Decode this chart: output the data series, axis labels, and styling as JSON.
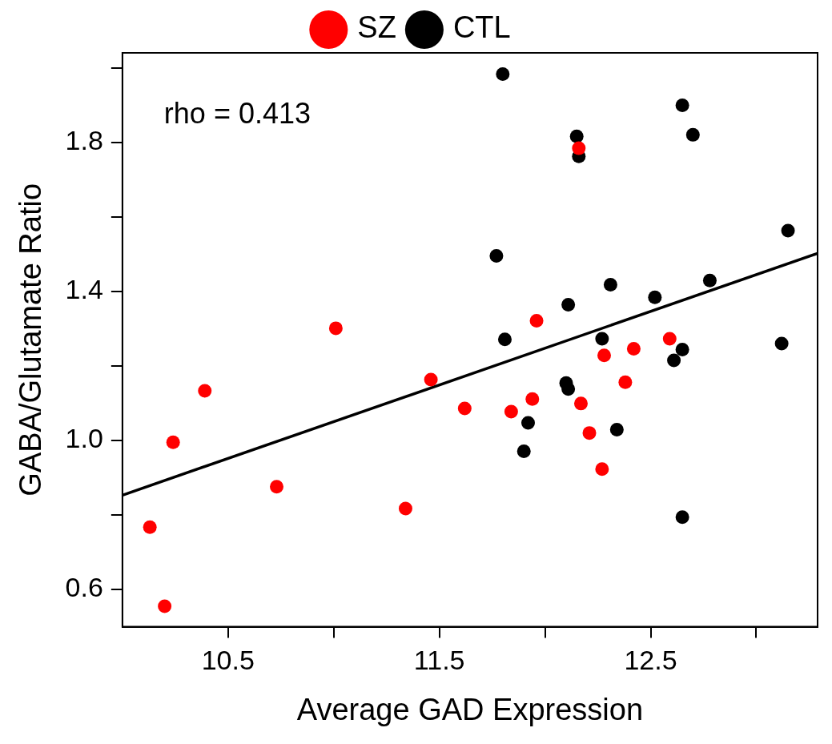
{
  "chart_data": {
    "type": "scatter",
    "xlabel": "Average GAD Expression",
    "ylabel": "GABA/Glutamate Ratio",
    "annotations": [
      "rho = 0.413"
    ],
    "legend": "top",
    "grid": false,
    "marker": "circle",
    "xlim": [
      10.0,
      13.29
    ],
    "ylim": [
      0.5,
      2.04
    ],
    "xticks": [
      10.5,
      {
        "value": 11,
        "label": null
      },
      11.5,
      {
        "value": 12,
        "label": null
      },
      12.5,
      {
        "value": 13,
        "label": null
      }
    ],
    "yticks": [
      0.6,
      {
        "value": 0.8,
        "label": null
      },
      {
        "value": 1,
        "label": "1.0"
      },
      {
        "value": 1.2,
        "label": null
      },
      1.4,
      {
        "value": 1.6,
        "label": null
      },
      1.8,
      {
        "value": 2,
        "label": null
      }
    ],
    "series": [
      {
        "name": "SZ",
        "color": "#ff0000",
        "x": [
          10.13,
          10.2,
          10.24,
          10.39,
          10.73,
          11.01,
          11.34,
          11.46,
          11.62,
          11.84,
          11.94,
          11.96,
          12.16,
          12.17,
          12.21,
          12.27,
          12.28,
          12.38,
          12.42,
          12.59
        ],
        "values": [
          0.767,
          0.555,
          0.995,
          1.133,
          0.876,
          1.301,
          0.817,
          1.163,
          1.086,
          1.077,
          1.111,
          1.321,
          1.784,
          1.099,
          1.02,
          0.923,
          1.228,
          1.156,
          1.246,
          1.273
        ]
      },
      {
        "name": "CTL",
        "color": "#000000",
        "x": [
          11.8,
          12.65,
          12.15,
          12.7,
          12.16,
          13.15,
          11.77,
          12.78,
          12.31,
          12.52,
          12.11,
          11.81,
          12.27,
          12.65,
          12.61,
          13.12,
          12.1,
          12.11,
          11.92,
          12.34,
          11.9,
          12.65
        ],
        "values": [
          1.983,
          1.899,
          1.816,
          1.82,
          1.762,
          1.563,
          1.495,
          1.429,
          1.418,
          1.384,
          1.364,
          1.271,
          1.273,
          1.244,
          1.215,
          1.26,
          1.154,
          1.138,
          1.047,
          1.029,
          0.971,
          0.794
        ]
      },
      {
        "type": "line",
        "color": "#000000",
        "marker": "none",
        "x": [
          10.0,
          13.29
        ],
        "values": [
          0.853,
          1.502
        ]
      }
    ]
  }
}
